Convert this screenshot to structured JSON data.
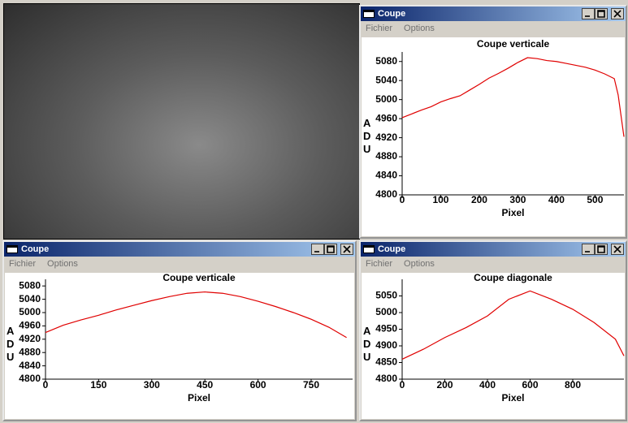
{
  "windows": [
    {
      "title": "Coupe",
      "menu": [
        "Fichier",
        "Options"
      ]
    },
    {
      "title": "Coupe",
      "menu": [
        "Fichier",
        "Options"
      ]
    },
    {
      "title": "Coupe",
      "menu": [
        "Fichier",
        "Options"
      ]
    }
  ],
  "chart_data": [
    {
      "type": "line",
      "title": "Coupe verticale",
      "x_label": "Pixel",
      "y_label": "ADU",
      "x": [
        0,
        25,
        50,
        75,
        100,
        125,
        150,
        175,
        200,
        225,
        250,
        275,
        300,
        325,
        350,
        375,
        400,
        425,
        450,
        475,
        500,
        525,
        550,
        560,
        575
      ],
      "series": [
        {
          "color": "#e00000",
          "values": [
            4962,
            4970,
            4978,
            4985,
            4995,
            5002,
            5008,
            5020,
            5032,
            5045,
            5055,
            5066,
            5078,
            5088,
            5086,
            5082,
            5080,
            5076,
            5072,
            5068,
            5062,
            5054,
            5044,
            5010,
            4922
          ]
        }
      ],
      "xlim": [
        0,
        575
      ],
      "xticks": [
        0,
        100,
        200,
        300,
        400,
        500
      ],
      "ylim": [
        4800,
        5100
      ],
      "yticks": [
        4800,
        4840,
        4880,
        4920,
        4960,
        5000,
        5040,
        5080
      ]
    },
    {
      "type": "line",
      "title": "Coupe verticale",
      "x_label": "Pixel",
      "y_label": "ADU",
      "x": [
        0,
        50,
        100,
        150,
        200,
        250,
        300,
        350,
        400,
        450,
        500,
        550,
        600,
        650,
        700,
        750,
        800,
        850
      ],
      "series": [
        {
          "color": "#e00000",
          "values": [
            4940,
            4962,
            4978,
            4992,
            5008,
            5022,
            5036,
            5048,
            5058,
            5062,
            5058,
            5048,
            5034,
            5018,
            5000,
            4980,
            4956,
            4925
          ]
        }
      ],
      "xlim": [
        0,
        867
      ],
      "xticks": [
        0,
        150,
        300,
        450,
        600,
        750
      ],
      "ylim": [
        4800,
        5100
      ],
      "yticks": [
        4800,
        4840,
        4880,
        4920,
        4960,
        5000,
        5040,
        5080
      ]
    },
    {
      "type": "line",
      "title": "Coupe diagonale",
      "x_label": "Pixel",
      "y_label": "ADU",
      "x": [
        0,
        100,
        200,
        300,
        400,
        500,
        600,
        700,
        800,
        900,
        1000,
        1040
      ],
      "series": [
        {
          "color": "#e00000",
          "values": [
            4860,
            4890,
            4925,
            4955,
            4990,
            5040,
            5065,
            5040,
            5010,
            4970,
            4920,
            4870
          ]
        }
      ],
      "xlim": [
        0,
        1040
      ],
      "xticks": [
        0,
        200,
        400,
        600,
        800
      ],
      "ylim": [
        4800,
        5100
      ],
      "yticks": [
        4800,
        4850,
        4900,
        4950,
        5000,
        5050
      ]
    }
  ]
}
